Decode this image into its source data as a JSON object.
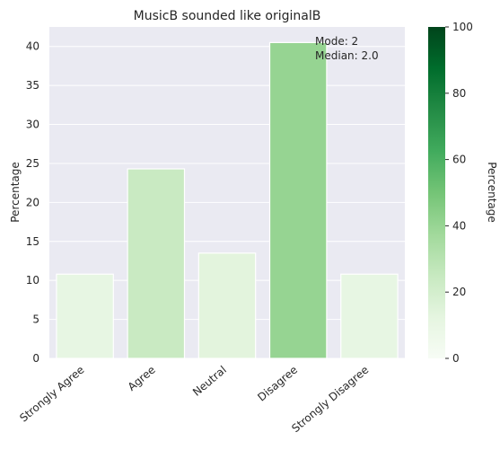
{
  "chart_data": {
    "type": "bar",
    "title": "MusicB sounded like originalB",
    "xlabel": "",
    "ylabel": "Percentage",
    "categories": [
      "Strongly Agree",
      "Agree",
      "Neutral",
      "Disagree",
      "Strongly Disagree"
    ],
    "values": [
      10.8,
      24.3,
      13.5,
      40.5,
      10.8
    ],
    "ylim": [
      0,
      42.5
    ],
    "yticks": [
      0,
      5,
      10,
      15,
      20,
      25,
      30,
      35,
      40
    ],
    "grid": true,
    "annotation": {
      "lines": [
        "Mode: 2",
        "Median: 2.0"
      ]
    },
    "colorbar": {
      "label": "Percentage",
      "range": [
        0,
        100
      ],
      "ticks": [
        0,
        20,
        40,
        60,
        80,
        100
      ],
      "colormap": "Greens",
      "stops": [
        "#f7fcf5",
        "#e5f5e0",
        "#c7e9c0",
        "#a1d99b",
        "#74c476",
        "#41ab5d",
        "#238b45",
        "#006d2c",
        "#00441b"
      ]
    },
    "colors": {
      "plot_background": "#eaeaf2",
      "gridline": "#ffffff",
      "bar_edge": "#ffffff"
    }
  }
}
